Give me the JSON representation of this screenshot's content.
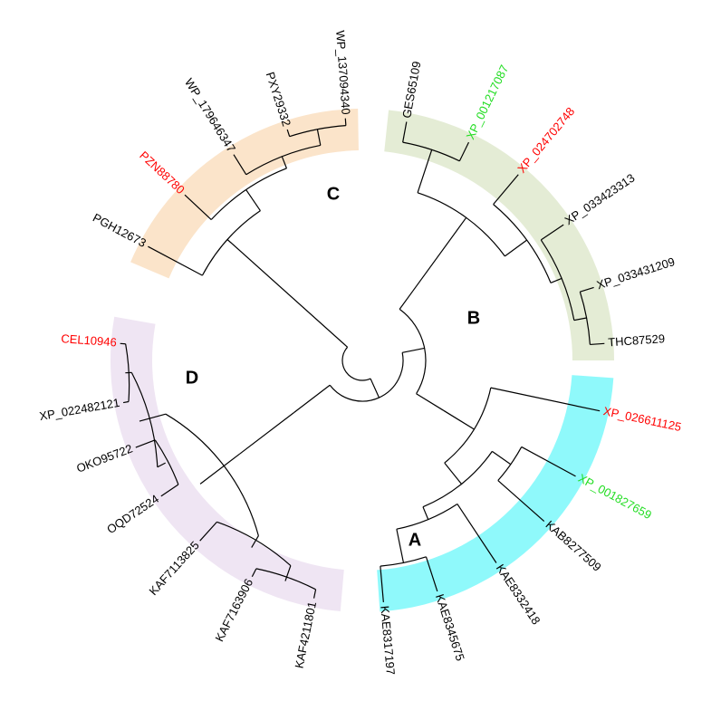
{
  "clades": [
    {
      "label": "A",
      "color": "#8ff9fb"
    },
    {
      "label": "B",
      "color": "#e4ecd5"
    },
    {
      "label": "C",
      "color": "#fbe4ca"
    },
    {
      "label": "D",
      "color": "#efe5f3"
    }
  ],
  "leaves": [
    {
      "label": "GES65109",
      "color": "#000000"
    },
    {
      "label": "XP_001217087",
      "color": "#22dd22"
    },
    {
      "label": "XP_024702748",
      "color": "#ff0000"
    },
    {
      "label": "XP_033423313",
      "color": "#000000"
    },
    {
      "label": "XP_033431209",
      "color": "#000000"
    },
    {
      "label": "THC87529",
      "color": "#000000"
    },
    {
      "label": "XP_026611125",
      "color": "#ff0000"
    },
    {
      "label": "XP_001827659",
      "color": "#22dd22"
    },
    {
      "label": "KAB8277509",
      "color": "#000000"
    },
    {
      "label": "KAE8332418",
      "color": "#000000"
    },
    {
      "label": "KAE8345675",
      "color": "#000000"
    },
    {
      "label": "KAE8317197",
      "color": "#000000"
    },
    {
      "label": "KAF4211801",
      "color": "#000000"
    },
    {
      "label": "KAF7163906",
      "color": "#000000"
    },
    {
      "label": "KAF7113825",
      "color": "#000000"
    },
    {
      "label": "OQD72524",
      "color": "#000000"
    },
    {
      "label": "OKO95722",
      "color": "#000000"
    },
    {
      "label": "XP_022482121",
      "color": "#000000"
    },
    {
      "label": "CEL10946",
      "color": "#ff0000"
    },
    {
      "label": "PGH12673",
      "color": "#000000"
    },
    {
      "label": "PZN88780",
      "color": "#ff0000"
    },
    {
      "label": "WP_179646347",
      "color": "#000000"
    },
    {
      "label": "PXY29332",
      "color": "#000000"
    },
    {
      "label": "WP_137094340",
      "color": "#000000"
    }
  ]
}
